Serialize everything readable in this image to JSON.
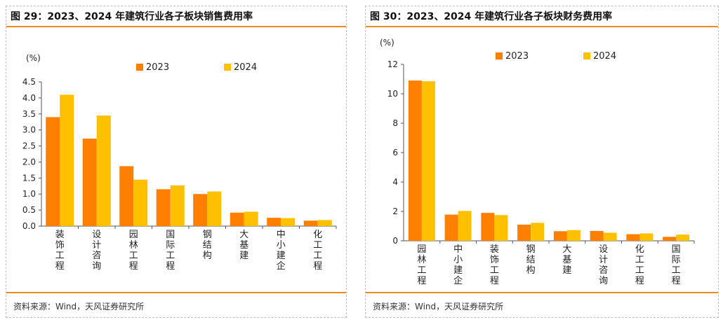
{
  "colors": {
    "s2023": "#ff7f00",
    "s2024": "#ffc000",
    "rule": "#f28a1e"
  },
  "left": {
    "title": "图 29：2023、2024 年建筑行业各子板块销售费用率",
    "source": "资料来源：Wind，天风证券研究所"
  },
  "right": {
    "title": "图 30：2023、2024 年建筑行业各子板块财务费用率",
    "source": "资料来源：Wind，天风证券研究所"
  },
  "chart_data": [
    {
      "type": "bar",
      "title": "图 29：2023、2024 年建筑行业各子板块销售费用率",
      "unit": "(%)",
      "categories": [
        "装饰工程",
        "设计咨询",
        "园林工程",
        "国际工程",
        "钢结构",
        "大基建",
        "中小建企",
        "化工工程"
      ],
      "series": [
        {
          "name": "2023",
          "values": [
            3.4,
            2.73,
            1.87,
            1.15,
            1.0,
            0.42,
            0.26,
            0.17
          ]
        },
        {
          "name": "2024",
          "values": [
            4.1,
            3.45,
            1.45,
            1.27,
            1.08,
            0.45,
            0.25,
            0.19
          ]
        }
      ],
      "ylim": [
        0,
        4.5
      ],
      "yticks": [
        "0.0",
        "0.5",
        "1.0",
        "1.5",
        "2.0",
        "2.5",
        "3.0",
        "3.5",
        "4.0",
        "4.5"
      ],
      "legend": "top",
      "grid": false
    },
    {
      "type": "bar",
      "title": "图 30：2023、2024 年建筑行业各子板块财务费用率",
      "unit": "(%)",
      "categories": [
        "园林工程",
        "中小建企",
        "装饰工程",
        "钢结构",
        "大基建",
        "设计咨询",
        "化工工程",
        "国际工程"
      ],
      "series": [
        {
          "name": "2023",
          "values": [
            10.9,
            1.78,
            1.9,
            1.1,
            0.65,
            0.67,
            0.45,
            0.27
          ]
        },
        {
          "name": "2024",
          "values": [
            10.85,
            2.03,
            1.75,
            1.22,
            0.73,
            0.55,
            0.5,
            0.42
          ]
        }
      ],
      "ylim": [
        0,
        12
      ],
      "yticks": [
        "0",
        "2",
        "4",
        "6",
        "8",
        "10",
        "12"
      ],
      "legend": "top",
      "grid": false
    }
  ]
}
